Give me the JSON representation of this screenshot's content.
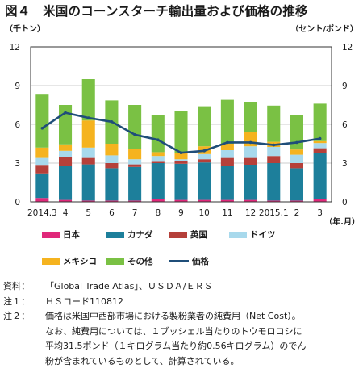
{
  "figure": {
    "title": "図４　米国のコーンスターチ輸出量および価格の推移"
  },
  "chart_data": {
    "type": "bar",
    "stacked": true,
    "left_unit": "（千トン）",
    "right_unit": "（セント/ポンド）",
    "x_unit": "（年.月）",
    "categories": [
      "2014.3",
      "4",
      "5",
      "6",
      "7",
      "8",
      "9",
      "10",
      "11",
      "12",
      "2015.1",
      "2",
      "3"
    ],
    "ylim": [
      0,
      12
    ],
    "yticks": [
      0,
      3,
      6,
      9,
      12
    ],
    "y2lim": [
      0,
      12
    ],
    "y2ticks": [
      0,
      3,
      6,
      9,
      12
    ],
    "grid": "horizontal",
    "series": [
      {
        "name": "日本",
        "color": "#e0287a",
        "values": [
          0.3,
          0.15,
          0.1,
          0.1,
          0.1,
          0.2,
          0.15,
          0.15,
          0.15,
          0.15,
          0.1,
          0.1,
          0.25
        ]
      },
      {
        "name": "カナダ",
        "color": "#1d7f9b",
        "values": [
          1.9,
          2.6,
          2.8,
          2.5,
          2.6,
          2.8,
          2.8,
          2.9,
          2.6,
          2.7,
          2.9,
          2.5,
          3.5
        ]
      },
      {
        "name": "英国",
        "color": "#b5403a",
        "values": [
          0.6,
          0.7,
          0.5,
          0.4,
          0.2,
          0.1,
          0.2,
          0.25,
          0.65,
          0.55,
          0.55,
          0.4,
          0.4
        ]
      },
      {
        "name": "ドイツ",
        "color": "#a8d9ec",
        "values": [
          0.6,
          0.5,
          0.8,
          0.6,
          0.4,
          0.45,
          0.15,
          0.4,
          0.6,
          0.9,
          0.7,
          0.65,
          0.4
        ]
      },
      {
        "name": "メキシコ",
        "color": "#f5b31f",
        "values": [
          0.8,
          0.5,
          2.1,
          0.9,
          0.8,
          0.3,
          0.5,
          0.6,
          0.5,
          1.1,
          0.4,
          0.4,
          0.15
        ]
      },
      {
        "name": "その他",
        "color": "#7ac144",
        "values": [
          4.1,
          3.05,
          3.2,
          3.35,
          3.4,
          2.9,
          3.2,
          3.1,
          3.4,
          2.35,
          2.8,
          2.65,
          2.9
        ]
      }
    ],
    "line": {
      "name": "価格",
      "color": "#1f4e79",
      "values": [
        5.7,
        6.9,
        6.5,
        6.2,
        5.2,
        4.8,
        3.8,
        3.95,
        4.6,
        4.6,
        4.4,
        4.6,
        4.9
      ]
    },
    "legend_position": "bottom"
  },
  "notes": [
    {
      "label": "資料：",
      "lines": [
        "「Global Trade Atlas」、ＵＳＤＡ/ＥＲＳ"
      ]
    },
    {
      "label": "注１：",
      "lines": [
        "ＨＳコード110812"
      ]
    },
    {
      "label": "注２：",
      "lines": [
        "価格は米国中西部市場における製粉業者の純費用（Net Cost）。",
        "なお、純費用については、１ブッシェル当たりのトウモロコシに",
        "平均31.5ポンド（１キログラム当たり約0.56キログラム）のでん",
        "粉が含まれているものとして、計算されている。"
      ]
    }
  ]
}
